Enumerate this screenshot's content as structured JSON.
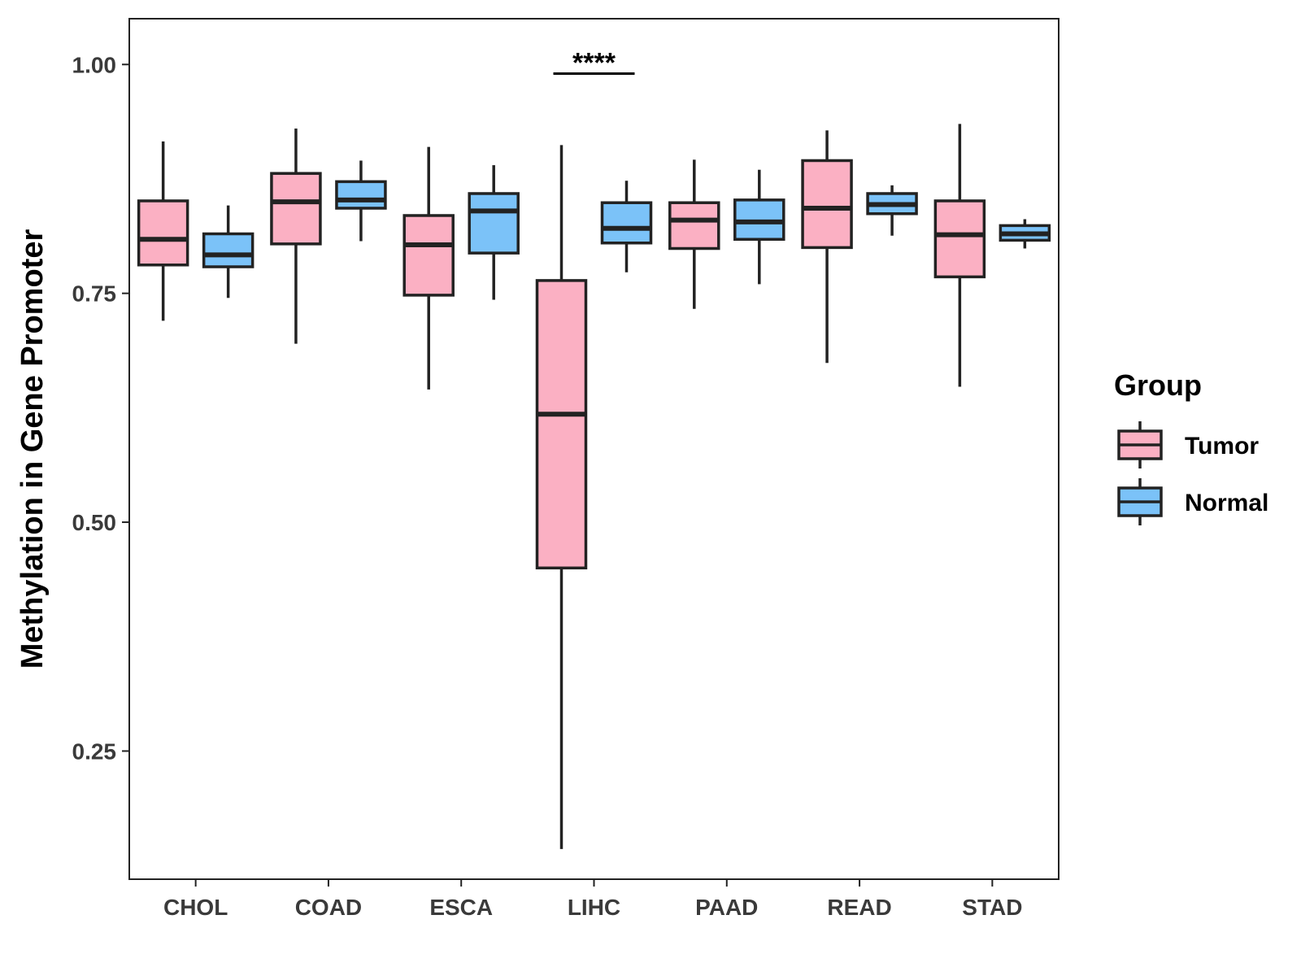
{
  "chart_data": {
    "type": "box",
    "title": "",
    "xlabel": "",
    "ylabel": "Methylation in Gene Promoter",
    "ylim": [
      0.11,
      1.05
    ],
    "yticks": [
      0.25,
      0.5,
      0.75,
      1.0
    ],
    "ytick_labels": [
      "0.25",
      "0.50",
      "0.75",
      "1.00"
    ],
    "grid": false,
    "categories": [
      "CHOL",
      "COAD",
      "ESCA",
      "LIHC",
      "PAAD",
      "READ",
      "STAD"
    ],
    "legend": {
      "title": "Group",
      "position": "right",
      "entries": [
        {
          "name": "Tumor",
          "color": "#FBB0C3"
        },
        {
          "name": "Normal",
          "color": "#7BC2F8"
        }
      ]
    },
    "series": [
      {
        "name": "Tumor",
        "color": "#FBB0C3",
        "boxes": [
          {
            "category": "CHOL",
            "min": 0.72,
            "q1": 0.781,
            "median": 0.809,
            "q3": 0.851,
            "max": 0.916
          },
          {
            "category": "COAD",
            "min": 0.695,
            "q1": 0.804,
            "median": 0.85,
            "q3": 0.881,
            "max": 0.93
          },
          {
            "category": "ESCA",
            "min": 0.645,
            "q1": 0.748,
            "median": 0.803,
            "q3": 0.835,
            "max": 0.91
          },
          {
            "category": "LIHC",
            "min": 0.143,
            "q1": 0.45,
            "median": 0.618,
            "q3": 0.764,
            "max": 0.912
          },
          {
            "category": "PAAD",
            "min": 0.733,
            "q1": 0.799,
            "median": 0.83,
            "q3": 0.849,
            "max": 0.896
          },
          {
            "category": "READ",
            "min": 0.674,
            "q1": 0.8,
            "median": 0.843,
            "q3": 0.895,
            "max": 0.928
          },
          {
            "category": "STAD",
            "min": 0.648,
            "q1": 0.768,
            "median": 0.814,
            "q3": 0.851,
            "max": 0.935
          }
        ]
      },
      {
        "name": "Normal",
        "color": "#7BC2F8",
        "boxes": [
          {
            "category": "CHOL",
            "min": 0.745,
            "q1": 0.779,
            "median": 0.792,
            "q3": 0.815,
            "max": 0.846
          },
          {
            "category": "COAD",
            "min": 0.807,
            "q1": 0.843,
            "median": 0.852,
            "q3": 0.872,
            "max": 0.895
          },
          {
            "category": "ESCA",
            "min": 0.743,
            "q1": 0.794,
            "median": 0.84,
            "q3": 0.859,
            "max": 0.89
          },
          {
            "category": "LIHC",
            "min": 0.773,
            "q1": 0.805,
            "median": 0.821,
            "q3": 0.849,
            "max": 0.873
          },
          {
            "category": "PAAD",
            "min": 0.76,
            "q1": 0.809,
            "median": 0.828,
            "q3": 0.852,
            "max": 0.885
          },
          {
            "category": "READ",
            "min": 0.813,
            "q1": 0.837,
            "median": 0.847,
            "q3": 0.859,
            "max": 0.868
          },
          {
            "category": "STAD",
            "min": 0.799,
            "q1": 0.808,
            "median": 0.815,
            "q3": 0.824,
            "max": 0.831
          }
        ]
      }
    ],
    "annotations": [
      {
        "text": "****",
        "category": "LIHC",
        "y": 0.99,
        "type": "significance-bracket"
      }
    ]
  }
}
